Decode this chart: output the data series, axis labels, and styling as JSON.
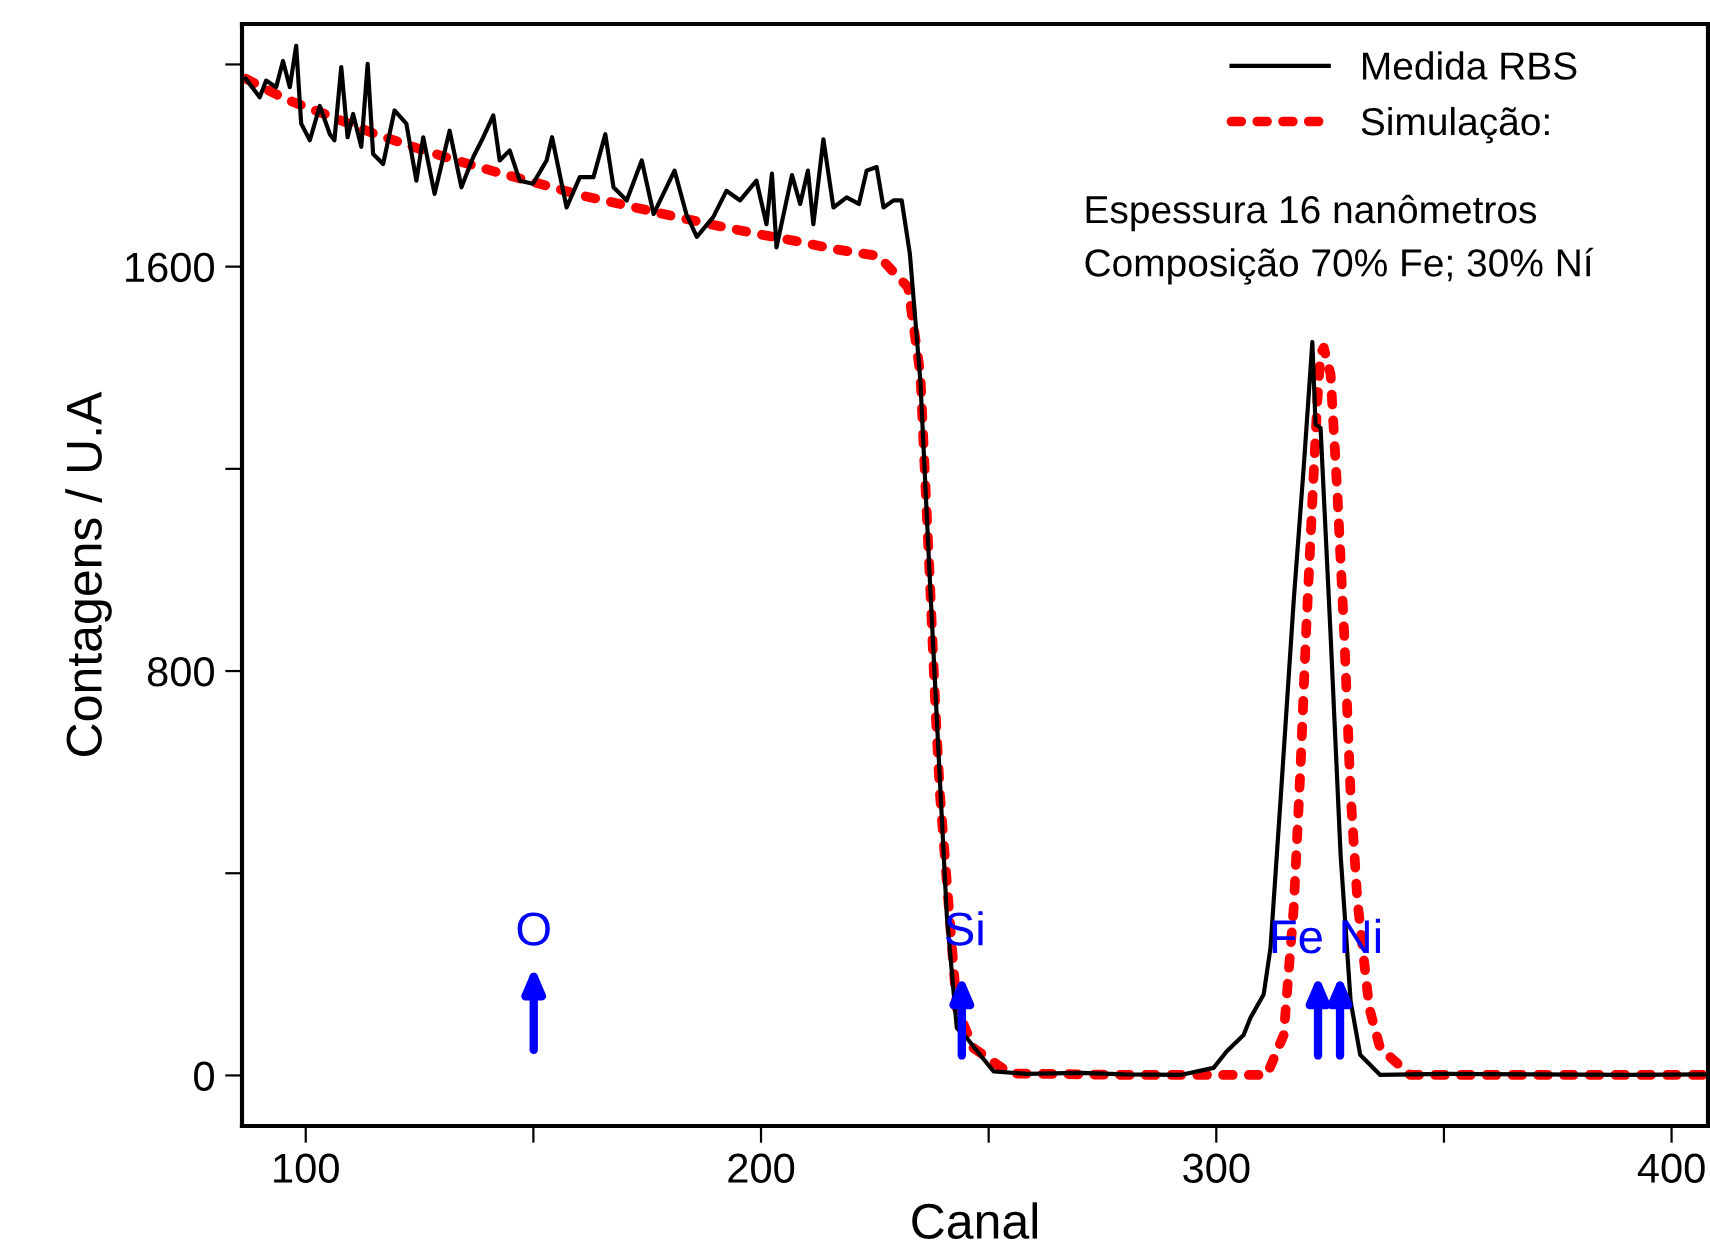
{
  "chart_data": {
    "type": "line",
    "xlabel": "Canal",
    "ylabel": "Contagens / U.A",
    "xlim": [
      86,
      408
    ],
    "ylim": [
      -100,
      2080
    ],
    "xticks": [
      100,
      {
        "value": 150,
        "label": null
      },
      200,
      {
        "value": 250,
        "label": null
      },
      300,
      {
        "value": 350,
        "label": null
      },
      400
    ],
    "yticks": [
      0,
      {
        "value": 400,
        "label": null
      },
      800,
      {
        "value": 1200,
        "label": null
      },
      1600,
      {
        "value": 2000,
        "label": null
      }
    ],
    "grid": false,
    "legend": "top right",
    "series": [
      {
        "name": "Medida RBS",
        "color": "#000000",
        "line_style": "solid",
        "x": [
          86.8,
          89.9,
          91.3,
          93.5,
          95.0,
          96.5,
          97.9,
          99.0,
          100.9,
          103.1,
          105.3,
          106.3,
          107.8,
          109.2,
          110.4,
          112.2,
          113.6,
          114.8,
          117.0,
          119.5,
          122.1,
          124.3,
          125.8,
          128.3,
          131.6,
          134.2,
          136.8,
          139.0,
          141.2,
          142.6,
          144.8,
          147.0,
          149.9,
          152.9,
          154.1,
          157.3,
          160.2,
          163.2,
          165.8,
          167.6,
          170.5,
          173.8,
          176.4,
          181.0,
          183.6,
          185.9,
          189.5,
          192.4,
          195.4,
          199.0,
          201.2,
          202.4,
          203.4,
          206.8,
          208.6,
          210.3,
          211.5,
          213.7,
          215.9,
          218.8,
          221.5,
          223.2,
          225.4,
          226.9,
          229.1,
          230.9,
          232.7,
          235.0,
          237.1,
          239.3,
          240.8,
          243.0,
          245.2,
          248.1,
          251.1,
          258.4,
          270,
          280,
          292.1,
          299.4,
          302.3,
          306.0,
          307.5,
          310.4,
          311.9,
          314.1,
          317.0,
          319.2,
          321.1,
          321.8,
          322.9,
          325.1,
          327.3,
          329.5,
          331.6,
          336.0,
          350,
          370,
          390,
          408
        ],
        "values": [
          1972,
          1935,
          1968,
          1955,
          2007,
          1955,
          2037,
          1883,
          1850,
          1918,
          1862,
          1850,
          1995,
          1856,
          1902,
          1837,
          2001,
          1823,
          1803,
          1909,
          1883,
          1770,
          1856,
          1744,
          1869,
          1757,
          1817,
          1856,
          1899,
          1810,
          1830,
          1770,
          1764,
          1810,
          1856,
          1717,
          1777,
          1777,
          1862,
          1757,
          1731,
          1810,
          1704,
          1790,
          1704,
          1659,
          1698,
          1750,
          1731,
          1770,
          1684,
          1784,
          1638,
          1781,
          1724,
          1790,
          1684,
          1852,
          1717,
          1737,
          1724,
          1790,
          1797,
          1717,
          1731,
          1731,
          1625,
          1374,
          978,
          582,
          318,
          94,
          74,
          41,
          8,
          3,
          5,
          2,
          1,
          15,
          48,
          80,
          114,
          160,
          252,
          543,
          939,
          1203,
          1451,
          1288,
          1281,
          872,
          437,
          147,
          41,
          1,
          3,
          2,
          1,
          2
        ]
      },
      {
        "name": "Simulação:",
        "color": "#ff0000",
        "line_style": "dotted",
        "x": [
          86.8,
          95.7,
          105.0,
          114.5,
          123.6,
          133.1,
          142.3,
          151.4,
          161.0,
          170.0,
          179.6,
          188.8,
          198.0,
          207.4,
          216.6,
          225.8,
          232.3,
          235.0,
          236.2,
          237.1,
          238.3,
          239.3,
          240.8,
          243.0,
          246.7,
          254.7,
          280,
          311.1,
          314.8,
          317.0,
          318.5,
          319.7,
          321.1,
          322.2,
          322.9,
          323.6,
          325.1,
          326.6,
          328.1,
          329.5,
          331.0,
          333.6,
          336.0,
          342.6,
          370,
          408
        ],
        "values": [
          1972,
          1931,
          1899,
          1865,
          1837,
          1810,
          1786,
          1764,
          1740,
          1722,
          1702,
          1684,
          1667,
          1651,
          1634,
          1621,
          1559,
          1387,
          1150,
          978,
          727,
          556,
          384,
          133,
          54,
          4,
          1,
          1,
          80,
          331,
          609,
          872,
          1137,
          1335,
          1427,
          1440,
          1387,
          1150,
          872,
          556,
          345,
          133,
          54,
          1,
          1,
          1
        ]
      }
    ],
    "annotations": [
      "Espessura 16 nanômetros",
      "Composição 70% Fe; 30% Ní",
      "O",
      "Si",
      "Fe",
      "Ni"
    ]
  }
}
